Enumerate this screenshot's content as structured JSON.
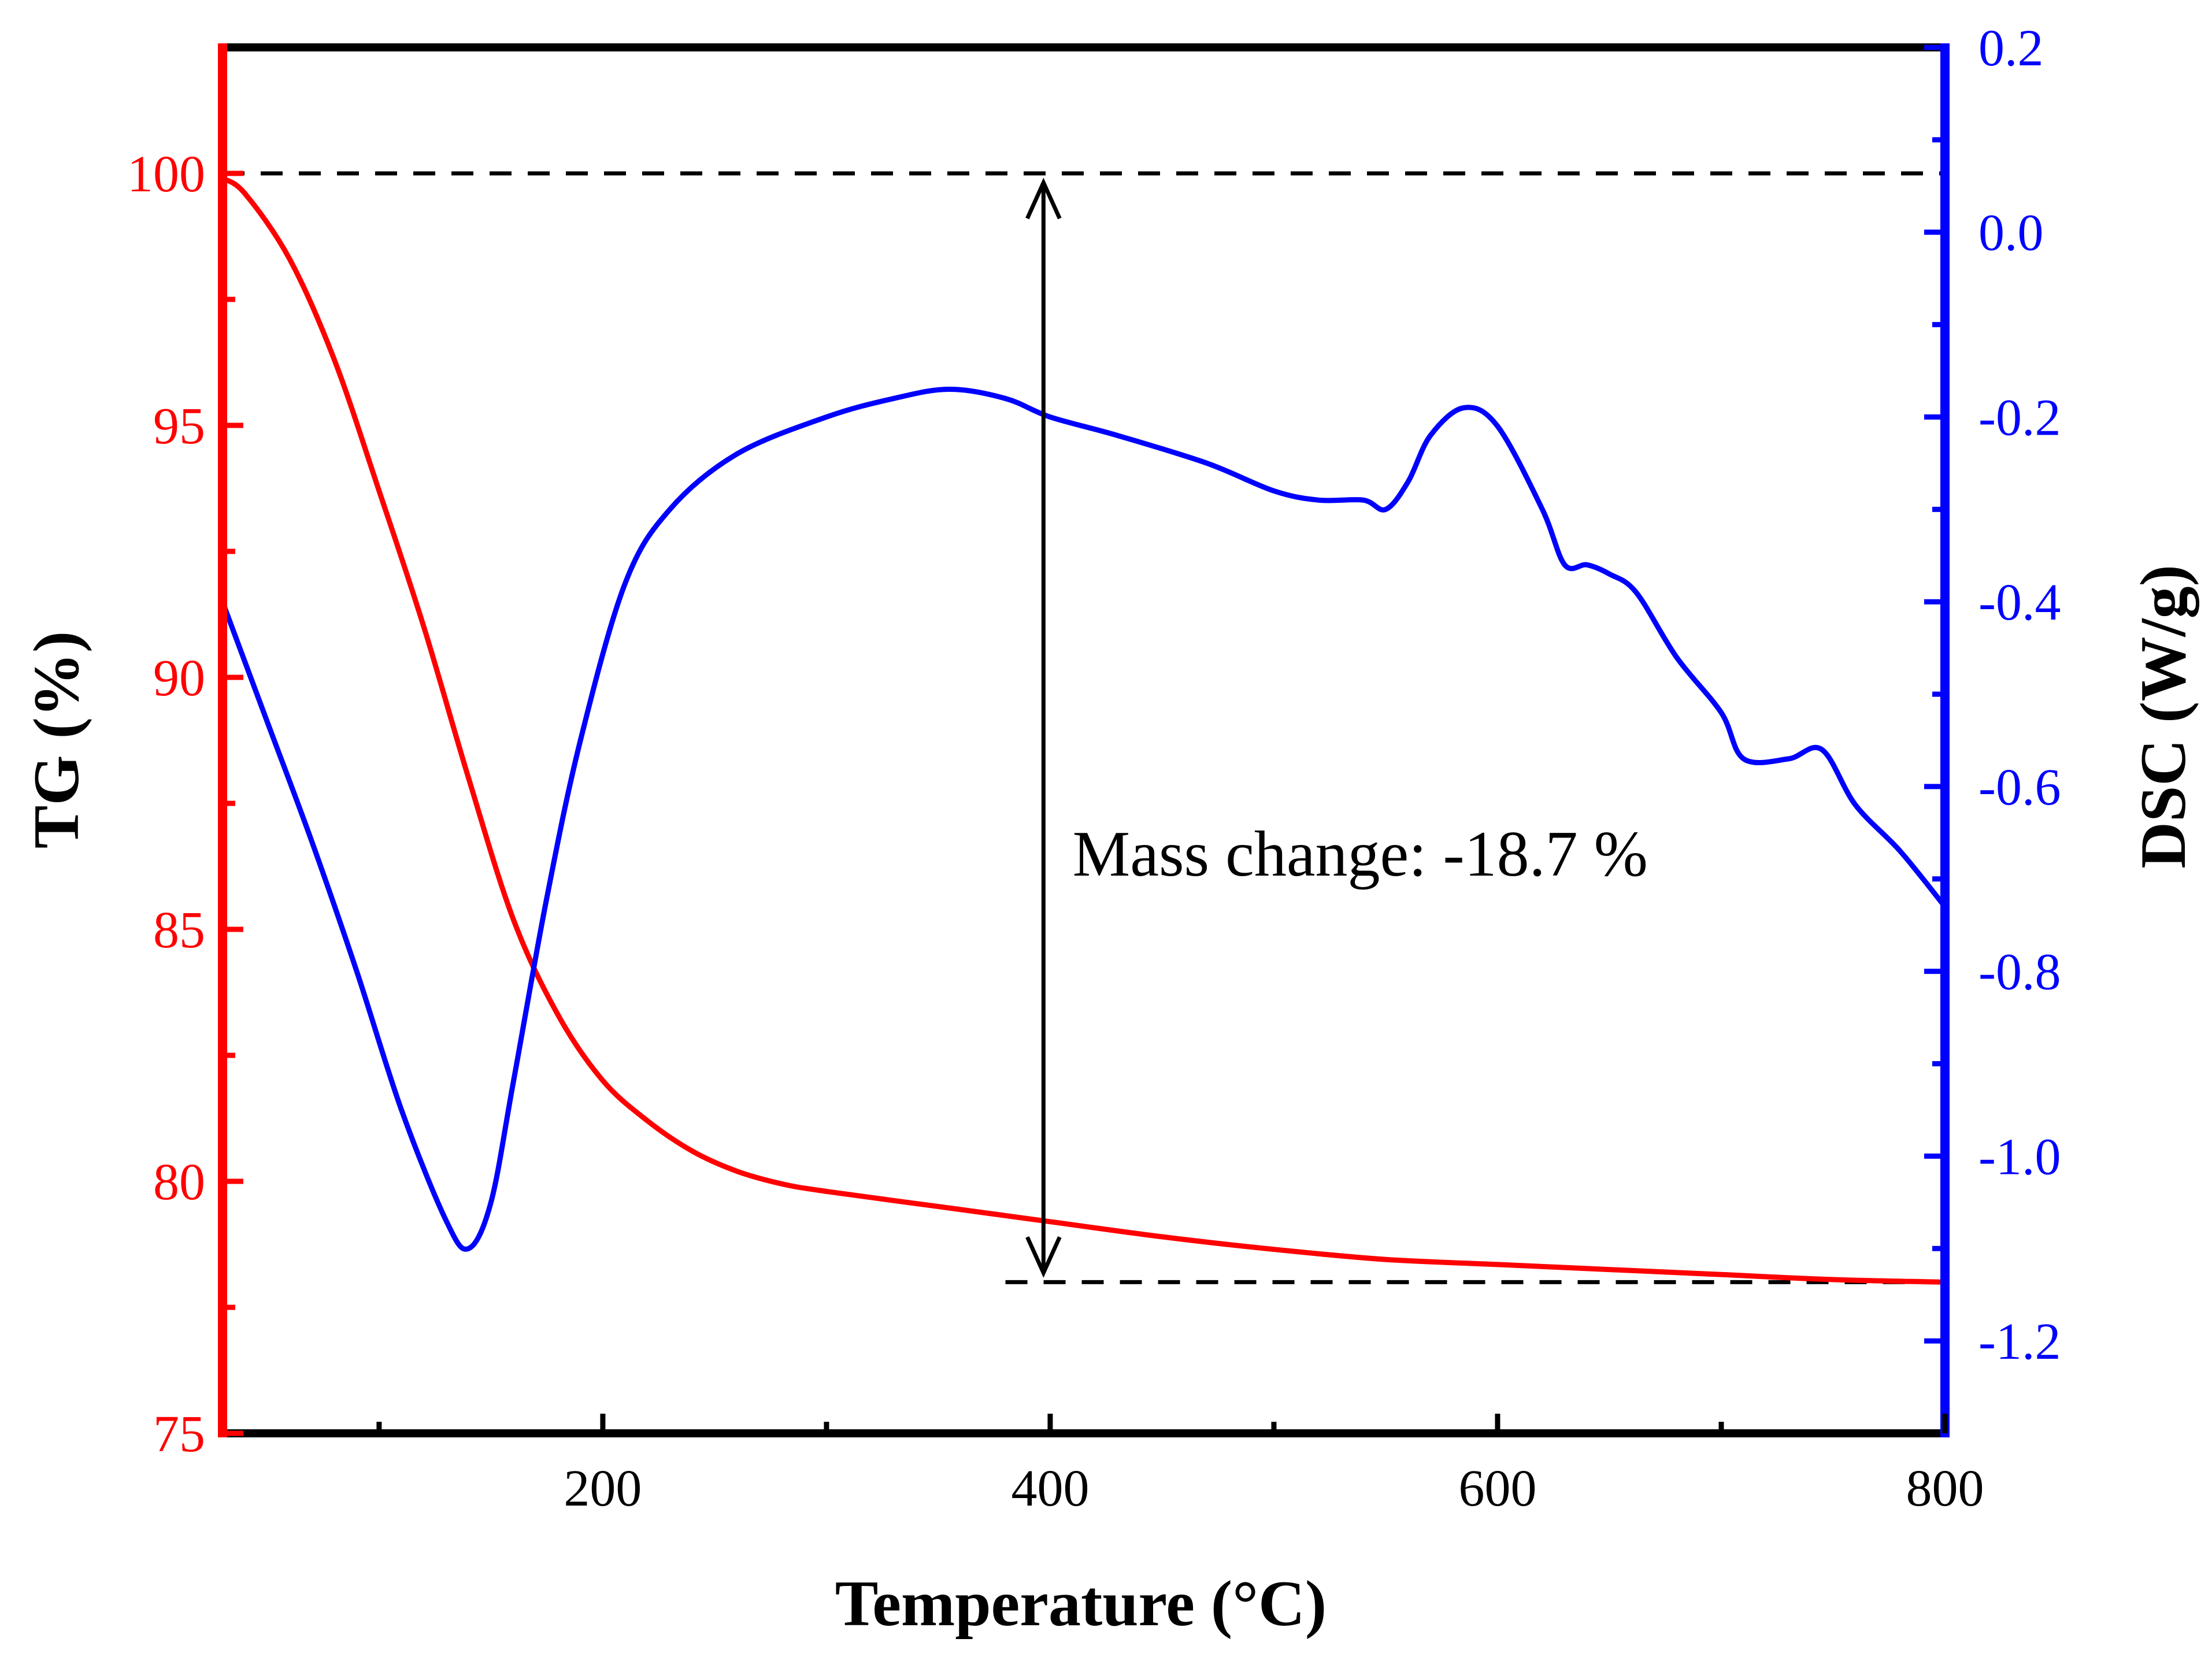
{
  "chart_data": {
    "type": "line",
    "title": "",
    "xlabel": "Temperature (°C)",
    "ylabel_left": "TG (%)",
    "ylabel_right": "DSC (W/g)",
    "xlim": [
      30,
      800
    ],
    "ylim_left": [
      75,
      102.5
    ],
    "ylim_right": [
      -1.3,
      0.2
    ],
    "x_ticks": [
      200,
      400,
      600,
      800
    ],
    "x_minor_ticks": [
      100,
      300,
      500,
      700
    ],
    "y_left_ticks": [
      75,
      80,
      85,
      90,
      95,
      100
    ],
    "y_left_minor_ticks": [
      77.5,
      82.5,
      87.5,
      92.5,
      97.5
    ],
    "y_right_ticks": [
      -1.2,
      -1.0,
      -0.8,
      -0.6,
      -0.4,
      -0.2,
      0.0,
      0.2
    ],
    "y_right_tick_labels": [
      "-1.2",
      "-1.0",
      "-0.8",
      "-0.6",
      "-0.4",
      "-0.2",
      "0.0",
      "0.2"
    ],
    "y_right_minor_ticks": [
      -1.1,
      -0.9,
      -0.7,
      -0.5,
      -0.3,
      -0.1,
      0.1
    ],
    "colors": {
      "tg": "#ff0000",
      "dsc": "#0000ff",
      "frame": "#000000"
    },
    "series": [
      {
        "name": "TG",
        "axis": "left",
        "color": "#ff0000",
        "x": [
          30,
          40,
          60,
          80,
          100,
          120,
          140,
          160,
          180,
          200,
          220,
          240,
          260,
          280,
          300,
          350,
          400,
          450,
          500,
          550,
          600,
          650,
          700,
          750,
          800
        ],
        "y": [
          99.9,
          99.6,
          98.3,
          96.3,
          93.7,
          91.0,
          88.0,
          85.2,
          83.3,
          82.0,
          81.2,
          80.6,
          80.2,
          79.95,
          79.8,
          79.5,
          79.2,
          78.9,
          78.65,
          78.45,
          78.35,
          78.25,
          78.15,
          78.05,
          78.0
        ]
      },
      {
        "name": "DSC",
        "axis": "right",
        "color": "#0000ff",
        "x": [
          30,
          50,
          70,
          90,
          110,
          130,
          140,
          150,
          160,
          175,
          190,
          210,
          230,
          260,
          300,
          330,
          355,
          380,
          400,
          430,
          470,
          500,
          520,
          540,
          550,
          560,
          570,
          585,
          600,
          620,
          630,
          640,
          650,
          662,
          680,
          700,
          710,
          730,
          745,
          760,
          780,
          800
        ],
        "y": [
          -0.4,
          -0.53,
          -0.66,
          -0.8,
          -0.95,
          -1.07,
          -1.1,
          -1.05,
          -0.92,
          -0.72,
          -0.55,
          -0.38,
          -0.3,
          -0.24,
          -0.2,
          -0.18,
          -0.17,
          -0.18,
          -0.2,
          -0.22,
          -0.25,
          -0.28,
          -0.29,
          -0.29,
          -0.3,
          -0.27,
          -0.22,
          -0.19,
          -0.21,
          -0.3,
          -0.36,
          -0.36,
          -0.37,
          -0.39,
          -0.46,
          -0.52,
          -0.57,
          -0.57,
          -0.56,
          -0.62,
          -0.67,
          -0.73
        ]
      }
    ],
    "annotations": [
      {
        "text": "Mass change: -18.7 %",
        "x": 410,
        "y_tg": 86.5,
        "arrow_x": 397,
        "arrow_from_tg": 100,
        "arrow_to_tg": 78
      }
    ],
    "reference_lines": [
      {
        "axis": "left",
        "y": 100,
        "x_from": 30,
        "x_to": 800,
        "style": "dashed"
      },
      {
        "axis": "left",
        "y": 78,
        "x_from": 380,
        "x_to": 800,
        "style": "dashed"
      }
    ],
    "grid": false,
    "legend": "none"
  }
}
